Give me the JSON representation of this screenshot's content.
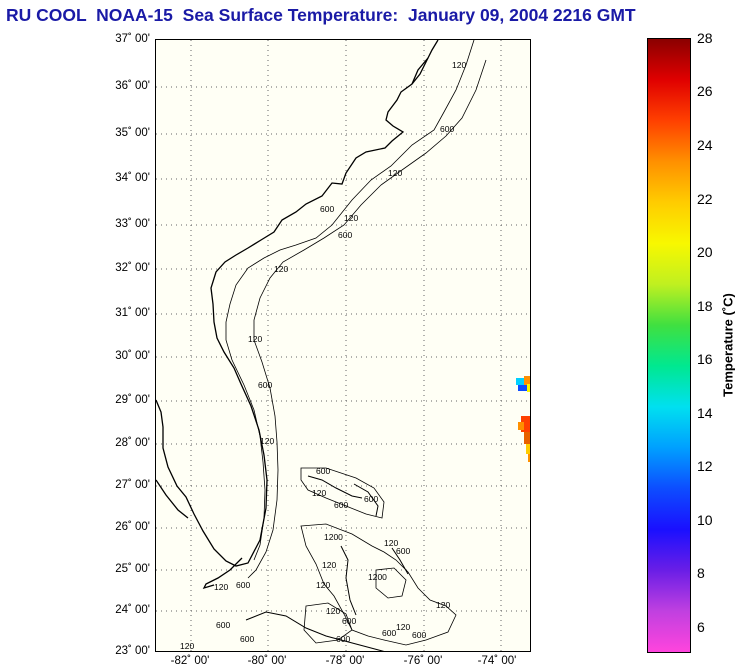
{
  "title": "RU COOL  NOAA-15  Sea Surface Temperature:  January 09, 2004 2216 GMT",
  "latitude_labels": [
    "37˚ 00'",
    "36˚ 00'",
    "35˚ 00'",
    "34˚ 00'",
    "33˚ 00'",
    "32˚ 00'",
    "31˚ 00'",
    "30˚ 00'",
    "29˚ 00'",
    "28˚ 00'",
    "27˚ 00'",
    "26˚ 00'",
    "25˚ 00'",
    "24˚ 00'",
    "23˚ 00'"
  ],
  "longitude_labels": [
    "-82˚ 00'",
    "-80˚ 00'",
    "-78˚ 00'",
    "-76˚ 00'",
    "-74˚ 00'"
  ],
  "contour_labels": [
    "120",
    "600",
    "120",
    "600",
    "120",
    "600",
    "120",
    "120",
    "600",
    "120",
    "600",
    "120",
    "600",
    "600",
    "120",
    "600",
    "120",
    "600",
    "1200",
    "120",
    "600",
    "120",
    "600",
    "120",
    "600",
    "120",
    "1200",
    "120",
    "600",
    "600",
    "120",
    "600"
  ],
  "colorbar": {
    "ticks": [
      "28",
      "26",
      "24",
      "22",
      "20",
      "18",
      "16",
      "14",
      "12",
      "10",
      "8",
      "6"
    ],
    "label": "Temperature (˚C)",
    "range": [
      5.5,
      28
    ],
    "colors": [
      "#ff44dd",
      "#c040e0",
      "#6a1ee6",
      "#1a10ff",
      "#0d4dff",
      "#00a0ff",
      "#00e0f0",
      "#00e890",
      "#40e040",
      "#c0f020",
      "#f8f800",
      "#ffcc00",
      "#ff9000",
      "#ff4000",
      "#e00000",
      "#8b0000"
    ]
  }
}
